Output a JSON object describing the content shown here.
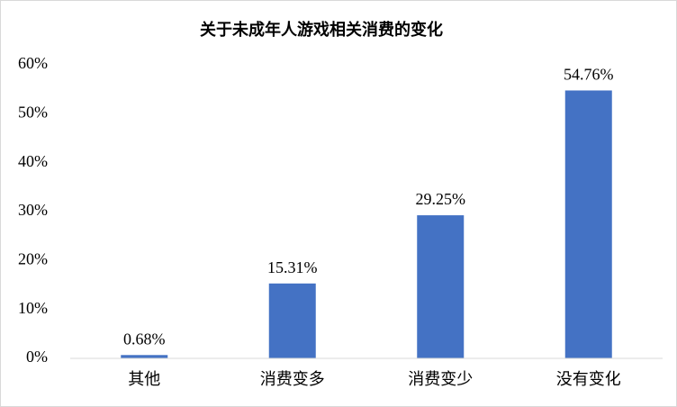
{
  "chart_data": {
    "type": "bar",
    "title": "关于未成年人游戏相关消费的变化",
    "categories": [
      "其他",
      "消费变多",
      "消费变少",
      "没有变化"
    ],
    "values": [
      0.68,
      15.31,
      29.25,
      54.76
    ],
    "value_labels": [
      "0.68%",
      "15.31%",
      "29.25%",
      "54.76%"
    ],
    "color": "#4472c4",
    "ylim": [
      0,
      60
    ],
    "yticks": [
      {
        "value": 0,
        "label": "0%"
      },
      {
        "value": 10,
        "label": "10%"
      },
      {
        "value": 20,
        "label": "20%"
      },
      {
        "value": 30,
        "label": "30%"
      },
      {
        "value": 40,
        "label": "40%"
      },
      {
        "value": 50,
        "label": "50%"
      },
      {
        "value": 60,
        "label": "60%"
      }
    ],
    "grid": false
  }
}
